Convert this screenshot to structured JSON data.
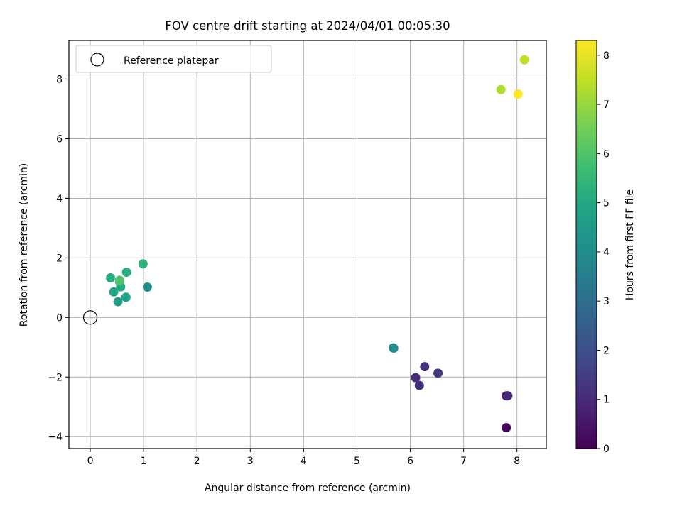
{
  "chart_data": {
    "type": "scatter",
    "title": "FOV centre drift starting at 2024/04/01 00:05:30",
    "xlabel": "Angular distance from reference (arcmin)",
    "ylabel": "Rotation from reference (arcmin)",
    "xlim": [
      -0.4,
      8.55
    ],
    "ylim": [
      -4.4,
      9.3
    ],
    "xticks": [
      0,
      1,
      2,
      3,
      4,
      5,
      6,
      7,
      8
    ],
    "yticks": [
      -4,
      -2,
      0,
      2,
      4,
      6,
      8
    ],
    "grid": true,
    "legend": {
      "location": "top-left",
      "entries": [
        "Reference platepar"
      ]
    },
    "reference_point": {
      "x": 0,
      "y": 0
    },
    "colorbar": {
      "label": "Hours from first FF file",
      "colormap": "viridis",
      "range": [
        0,
        8.3
      ],
      "ticks": [
        0,
        1,
        2,
        3,
        4,
        5,
        6,
        7,
        8
      ]
    },
    "points": [
      {
        "x": 7.8,
        "y": -3.7,
        "hours": 0.05
      },
      {
        "x": 7.82,
        "y": -2.63,
        "hours": 0.5
      },
      {
        "x": 7.8,
        "y": -2.63,
        "hours": 0.7
      },
      {
        "x": 7.83,
        "y": -2.63,
        "hours": 0.9
      },
      {
        "x": 6.1,
        "y": -2.02,
        "hours": 1.0
      },
      {
        "x": 6.17,
        "y": -2.28,
        "hours": 1.1
      },
      {
        "x": 6.27,
        "y": -1.65,
        "hours": 1.2
      },
      {
        "x": 6.52,
        "y": -1.87,
        "hours": 1.3
      },
      {
        "x": 5.68,
        "y": -1.02,
        "hours": 3.9
      },
      {
        "x": 5.69,
        "y": -1.03,
        "hours": 4.0
      },
      {
        "x": 1.07,
        "y": 1.02,
        "hours": 4.1
      },
      {
        "x": 0.52,
        "y": 0.53,
        "hours": 4.6
      },
      {
        "x": 0.67,
        "y": 0.68,
        "hours": 4.8
      },
      {
        "x": 0.44,
        "y": 0.86,
        "hours": 4.9
      },
      {
        "x": 0.57,
        "y": 1.03,
        "hours": 5.0
      },
      {
        "x": 0.38,
        "y": 1.33,
        "hours": 5.1
      },
      {
        "x": 0.68,
        "y": 1.52,
        "hours": 5.2
      },
      {
        "x": 0.99,
        "y": 1.8,
        "hours": 5.3
      },
      {
        "x": 0.55,
        "y": 1.2,
        "hours": 5.5
      },
      {
        "x": 0.55,
        "y": 1.25,
        "hours": 6.0
      },
      {
        "x": 7.7,
        "y": 7.65,
        "hours": 7.3
      },
      {
        "x": 8.14,
        "y": 8.65,
        "hours": 7.5
      },
      {
        "x": 8.02,
        "y": 7.5,
        "hours": 8.3
      }
    ]
  }
}
